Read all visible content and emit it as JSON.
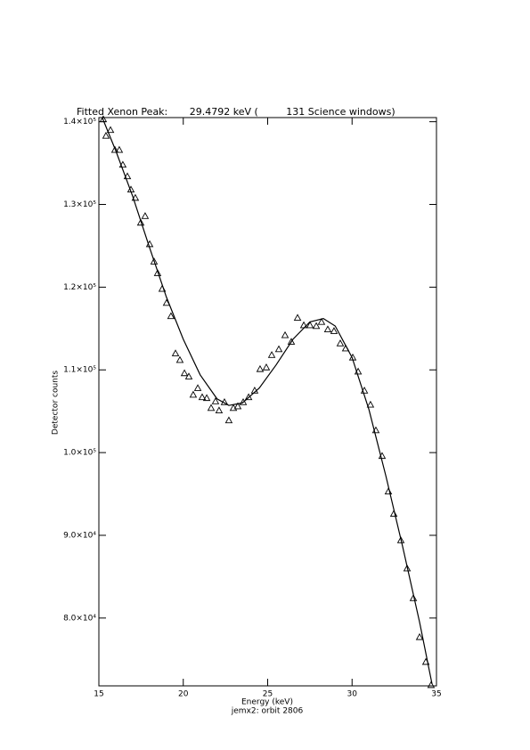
{
  "chart_data": {
    "type": "scatter",
    "title": "Fitted Xenon Peak:       29.4792 keV (         131 Science windows)",
    "x_label": "Energy (keV)",
    "subtitle": "jemx2: orbit 2806",
    "y_label": "Detector counts",
    "xlim": [
      15,
      35
    ],
    "xticks": [
      15,
      20,
      25,
      30,
      35
    ],
    "ylim": [
      71800,
      140500
    ],
    "yticks": [
      {
        "value": 80000,
        "label": "8.0×10⁴"
      },
      {
        "value": 90000,
        "label": "9.0×10⁴"
      },
      {
        "value": 100000,
        "label": "1.0×10⁵"
      },
      {
        "value": 110000,
        "label": "1.1×10⁵"
      },
      {
        "value": 120000,
        "label": "1.2×10⁵"
      },
      {
        "value": 130000,
        "label": "1.3×10⁵"
      },
      {
        "value": 140000,
        "label": "1.4×10⁵"
      }
    ],
    "series": [
      {
        "type": "scatter",
        "marker": "triangle",
        "color": "#000000",
        "x": [
          15.26,
          15.42,
          15.69,
          15.95,
          16.21,
          16.42,
          16.69,
          16.9,
          17.16,
          17.48,
          17.74,
          18.01,
          18.27,
          18.48,
          18.75,
          19.01,
          19.27,
          19.54,
          19.8,
          20.07,
          20.33,
          20.59,
          20.86,
          21.12,
          21.39,
          21.65,
          21.91,
          22.12,
          22.44,
          22.7,
          22.97,
          23.23,
          23.55,
          23.87,
          24.23,
          24.55,
          24.92,
          25.24,
          25.66,
          26.03,
          26.4,
          26.77,
          27.14,
          27.51,
          27.88,
          28.19,
          28.56,
          28.93,
          29.3,
          29.62,
          30.04,
          30.36,
          30.73,
          31.09,
          31.41,
          31.78,
          32.15,
          32.47,
          32.89,
          33.26,
          33.63,
          34.0,
          34.37,
          34.68
        ],
        "values": [
          140300,
          138300,
          139000,
          136600,
          136600,
          134800,
          133400,
          131800,
          130800,
          127800,
          128600,
          125200,
          123100,
          121700,
          119800,
          118100,
          116500,
          112000,
          111200,
          109600,
          109200,
          107000,
          107800,
          106700,
          106600,
          105400,
          106200,
          105100,
          106100,
          103900,
          105400,
          105600,
          106100,
          106700,
          107500,
          110100,
          110300,
          111800,
          112500,
          114200,
          113400,
          116300,
          115400,
          115400,
          115300,
          115800,
          114900,
          114700,
          113200,
          112600,
          111500,
          109800,
          107500,
          105800,
          102700,
          99600,
          95300,
          92600,
          89400,
          86000,
          82400,
          77700,
          74700,
          71900
        ]
      },
      {
        "type": "line",
        "color": "#000000",
        "x": [
          15.2,
          16,
          17,
          18,
          19,
          20,
          21,
          22,
          22.7,
          23.5,
          24.5,
          25.5,
          26.5,
          27.5,
          28.3,
          29,
          30,
          31,
          32,
          33,
          34,
          34.74
        ],
        "values": [
          140500,
          136500,
          131000,
          124800,
          118800,
          113700,
          109400,
          106500,
          105700,
          106000,
          107800,
          110600,
          113700,
          115800,
          116200,
          115300,
          111500,
          105200,
          97200,
          88600,
          79500,
          72000
        ]
      }
    ]
  }
}
